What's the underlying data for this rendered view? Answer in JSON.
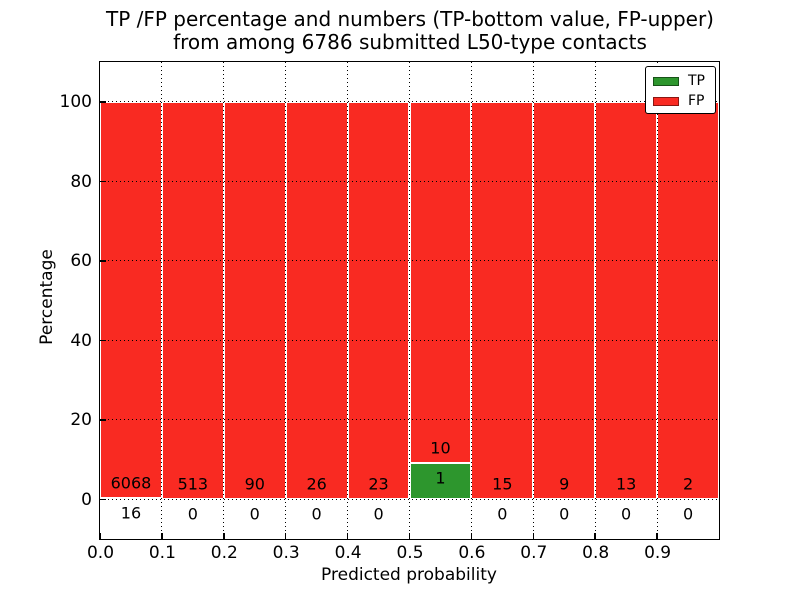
{
  "title": {
    "line1": "TP /FP percentage and numbers (TP-bottom value, FP-upper)",
    "line2": "from among 6786 submitted L50-type contacts"
  },
  "axes": {
    "xlabel": "Predicted probability",
    "ylabel": "Percentage"
  },
  "legend": {
    "items": [
      {
        "label": "TP",
        "color": "#2d962d"
      },
      {
        "label": "FP",
        "color": "#f92a22"
      }
    ]
  },
  "chart_data": {
    "type": "bar",
    "subtype": "stacked-100-percent",
    "title": "TP /FP percentage and numbers (TP-bottom value, FP-upper) from among 6786 submitted L50-type contacts",
    "total_submitted_contacts": 6786,
    "xlabel": "Predicted probability",
    "ylabel": "Percentage",
    "xlim": [
      0.0,
      1.0
    ],
    "ylim": [
      -10,
      110
    ],
    "xticks": [
      "0.0",
      "0.1",
      "0.2",
      "0.3",
      "0.4",
      "0.5",
      "0.6",
      "0.7",
      "0.8",
      "0.9"
    ],
    "yticks": [
      0,
      20,
      40,
      60,
      80,
      100
    ],
    "grid": {
      "style": "dotted",
      "color": "#000000",
      "axes": "both"
    },
    "legend_position": "upper right",
    "categories": [
      "0.0-0.1",
      "0.1-0.2",
      "0.2-0.3",
      "0.3-0.4",
      "0.4-0.5",
      "0.5-0.6",
      "0.6-0.7",
      "0.7-0.8",
      "0.8-0.9",
      "0.9-1.0"
    ],
    "series": [
      {
        "name": "TP",
        "color": "#2d962d",
        "counts": [
          16,
          0,
          0,
          0,
          0,
          1,
          0,
          0,
          0,
          0
        ]
      },
      {
        "name": "FP",
        "color": "#f92a22",
        "counts": [
          6068,
          513,
          90,
          26,
          23,
          10,
          15,
          9,
          13,
          2
        ]
      }
    ],
    "bar_note": "bar heights are per-bin percentages: TP/(TP+FP)*100 on bottom (green), FP/(TP+FP)*100 on top (red); count labels printed above (FP) and below (TP) the stack boundary"
  }
}
